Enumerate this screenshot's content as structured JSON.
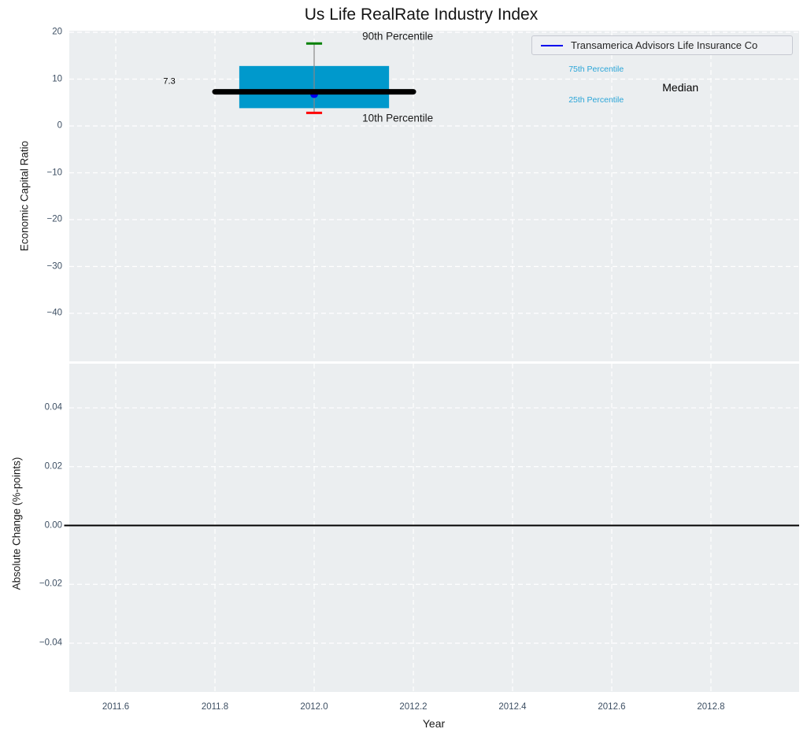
{
  "chart_data": {
    "type": "box",
    "title": "Us Life RealRate Industry Index",
    "xlabel": "Year",
    "xlim": [
      2011.5063,
      2012.9778
    ],
    "xticks": [
      {
        "value": 2011.6,
        "label": "2011.6"
      },
      {
        "value": 2011.8,
        "label": "2011.8"
      },
      {
        "value": 2012.0,
        "label": "2012.0"
      },
      {
        "value": 2012.2,
        "label": "2012.2"
      },
      {
        "value": 2012.4,
        "label": "2012.4"
      },
      {
        "value": 2012.6,
        "label": "2012.6"
      },
      {
        "value": 2012.8,
        "label": "2012.8"
      }
    ],
    "legend": {
      "position": "upper right",
      "entries": [
        {
          "label": "Transamerica Advisors Life Insurance Co",
          "color": "#0000ee",
          "marker": "line"
        }
      ]
    },
    "style": {
      "plot_bg": "#ebeef0",
      "grid_color": "#ffffff",
      "tick_color": "#3d4f63",
      "box_color": "#0099cc",
      "median_color": "#000000",
      "whisker_color": "#888888",
      "p90_cap_color": "#008000",
      "p10_cap_color": "#ff0000",
      "company_color": "#0000ee",
      "zero_line_color": "#000000",
      "annotation_cyan": "#2aa5d8",
      "text_color": "#1a1a1a"
    },
    "subplots": [
      {
        "ylabel": "Economic Capital Ratio",
        "ylim": [
          -50.25,
          20.336
        ],
        "grid": true,
        "yticks": [
          {
            "value": 20,
            "label": "20"
          },
          {
            "value": 10,
            "label": "10"
          },
          {
            "value": 0,
            "label": "0"
          },
          {
            "value": -10,
            "label": "−10"
          },
          {
            "value": -20,
            "label": "−20"
          },
          {
            "value": -30,
            "label": "−30"
          },
          {
            "value": -40,
            "label": "−40"
          }
        ],
        "box": {
          "x": 2012.0,
          "p90": 17.6,
          "p75": 12.8,
          "median": 7.3,
          "p25": 3.8,
          "p10": 2.8,
          "company_value": 6.8,
          "box_halfwidth": 0.151,
          "median_halfwidth": 0.2,
          "cap_halfwidth": 0.016
        },
        "annotations": [
          {
            "text": "90th Percentile",
            "x": 2012.097,
            "y": 19.2,
            "anchor": "start",
            "color": "#1a1a1a",
            "size": 13.5
          },
          {
            "text": "10th Percentile",
            "x": 2012.097,
            "y": 1.6,
            "anchor": "start",
            "color": "#1a1a1a",
            "size": 13.5
          },
          {
            "text": "75th Percentile",
            "x": 2012.513,
            "y": 12.1,
            "anchor": "start",
            "color": "#2aa5d8",
            "size": 10.5
          },
          {
            "text": "25th Percentile",
            "x": 2012.513,
            "y": 5.6,
            "anchor": "start",
            "color": "#2aa5d8",
            "size": 10.5
          },
          {
            "text": "Median",
            "x": 2012.702,
            "y": 8.2,
            "anchor": "start",
            "color": "#000000",
            "size": 14
          },
          {
            "text": "7.3",
            "x": 2011.708,
            "y": 9.4,
            "anchor": "middle",
            "color": "#000000",
            "size": 11
          }
        ]
      },
      {
        "ylabel": "Absolute Change (%-points)",
        "ylim": [
          -0.0566,
          0.055
        ],
        "grid": true,
        "yticks": [
          {
            "value": 0.04,
            "label": "0.04"
          },
          {
            "value": 0.02,
            "label": "0.02"
          },
          {
            "value": 0,
            "label": "0.00"
          },
          {
            "value": -0.02,
            "label": "−0.02"
          },
          {
            "value": -0.04,
            "label": "−0.04"
          }
        ],
        "zero_line": 0.0
      }
    ]
  }
}
